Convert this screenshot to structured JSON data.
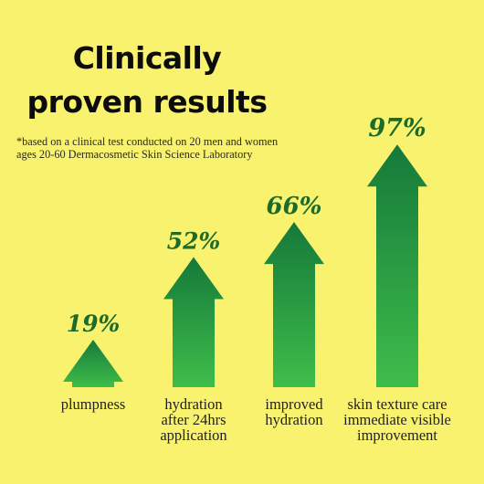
{
  "title_lines": [
    "Clinically",
    "proven results"
  ],
  "footnote_lines": [
    "*based on a clinical test conducted on 20 men and women",
    "ages 20-60 Dermacosmetic Skin Science Laboratory"
  ],
  "colors": {
    "background": "#f9f26f",
    "arrow_dark": "#15793a",
    "arrow_light": "#3fbd4a",
    "value_text": "#1c6b2a"
  },
  "chart_data": {
    "type": "bar",
    "mark": "arrow",
    "categories": [
      [
        "plumpness"
      ],
      [
        "hydration",
        "after 24hrs",
        "application"
      ],
      [
        "improved",
        "hydration"
      ],
      [
        "skin texture care",
        "immediate visible",
        "improvement"
      ]
    ],
    "values": [
      19,
      52,
      66,
      97
    ],
    "value_labels": [
      "19%",
      "52%",
      "66%",
      "97%"
    ],
    "unit": "%",
    "title": "Clinically proven results",
    "ylim": [
      0,
      100
    ],
    "grid": false
  }
}
